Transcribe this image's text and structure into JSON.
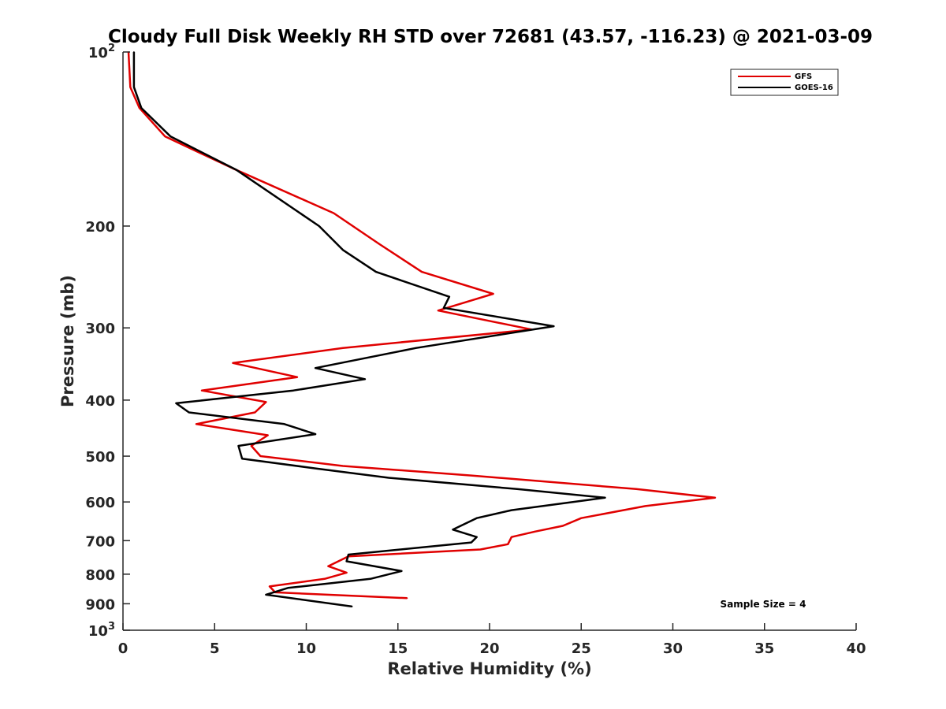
{
  "chart_data": {
    "type": "line",
    "title": "Cloudy Full Disk Weekly RH STD over 72681 (43.57, -116.23) @ 2021-03-09",
    "xlabel": "Relative Humidity (%)",
    "ylabel": "Pressure (mb)",
    "xlim": [
      0,
      40
    ],
    "ylim": [
      100,
      1000
    ],
    "yscale": "log",
    "y_reversed": true,
    "grid": false,
    "legend_position": "top-right",
    "x_ticks": [
      "0",
      "5",
      "10",
      "15",
      "20",
      "25",
      "30",
      "35",
      "40"
    ],
    "y_ticks": [
      {
        "value": 100,
        "base": "10",
        "exp": "2"
      },
      {
        "value": 200,
        "label": "200"
      },
      {
        "value": 300,
        "label": "300"
      },
      {
        "value": 400,
        "label": "400"
      },
      {
        "value": 500,
        "label": "500"
      },
      {
        "value": 600,
        "label": "600"
      },
      {
        "value": 700,
        "label": "700"
      },
      {
        "value": 800,
        "label": "800"
      },
      {
        "value": 900,
        "label": "900"
      },
      {
        "value": 1000,
        "base": "10",
        "exp": "3"
      }
    ],
    "series": [
      {
        "name": "GFS",
        "color": "#e00000",
        "points": [
          [
            0.3,
            100
          ],
          [
            0.4,
            115
          ],
          [
            0.9,
            125
          ],
          [
            2.3,
            140
          ],
          [
            6.0,
            159
          ],
          [
            11.5,
            190
          ],
          [
            14.0,
            215
          ],
          [
            16.3,
            240
          ],
          [
            20.2,
            262
          ],
          [
            17.2,
            280
          ],
          [
            22.3,
            302
          ],
          [
            12.0,
            325
          ],
          [
            6.0,
            345
          ],
          [
            9.5,
            365
          ],
          [
            4.3,
            385
          ],
          [
            7.8,
            403
          ],
          [
            7.2,
            420
          ],
          [
            4.0,
            440
          ],
          [
            7.9,
            460
          ],
          [
            7.0,
            480
          ],
          [
            7.5,
            500
          ],
          [
            12.0,
            520
          ],
          [
            19.0,
            540
          ],
          [
            28.0,
            570
          ],
          [
            32.3,
            590
          ],
          [
            28.5,
            610
          ],
          [
            25.0,
            640
          ],
          [
            24.0,
            660
          ],
          [
            22.5,
            675
          ],
          [
            21.2,
            690
          ],
          [
            21.0,
            710
          ],
          [
            19.5,
            725
          ],
          [
            12.3,
            745
          ],
          [
            11.2,
            775
          ],
          [
            12.2,
            795
          ],
          [
            11.0,
            815
          ],
          [
            8.0,
            840
          ],
          [
            8.3,
            860
          ],
          [
            15.5,
            880
          ]
        ]
      },
      {
        "name": "GOES-16",
        "color": "#000000",
        "points": [
          [
            0.6,
            100
          ],
          [
            0.6,
            115
          ],
          [
            1.0,
            125
          ],
          [
            2.6,
            140
          ],
          [
            6.2,
            160
          ],
          [
            10.7,
            200
          ],
          [
            12.0,
            220
          ],
          [
            13.8,
            240
          ],
          [
            17.8,
            265
          ],
          [
            17.5,
            277
          ],
          [
            23.5,
            298
          ],
          [
            16.0,
            325
          ],
          [
            10.5,
            352
          ],
          [
            13.2,
            368
          ],
          [
            9.3,
            385
          ],
          [
            2.9,
            405
          ],
          [
            3.6,
            420
          ],
          [
            8.8,
            440
          ],
          [
            10.5,
            458
          ],
          [
            6.3,
            480
          ],
          [
            6.5,
            505
          ],
          [
            10.5,
            525
          ],
          [
            14.5,
            545
          ],
          [
            21.5,
            570
          ],
          [
            26.3,
            590
          ],
          [
            21.2,
            620
          ],
          [
            19.3,
            640
          ],
          [
            18.0,
            670
          ],
          [
            19.3,
            690
          ],
          [
            19.0,
            705
          ],
          [
            12.3,
            740
          ],
          [
            12.2,
            760
          ],
          [
            15.2,
            790
          ],
          [
            13.5,
            815
          ],
          [
            9.0,
            845
          ],
          [
            7.8,
            868
          ],
          [
            12.5,
            910
          ]
        ]
      }
    ],
    "annotations": [
      "Sample Size = 4"
    ]
  }
}
